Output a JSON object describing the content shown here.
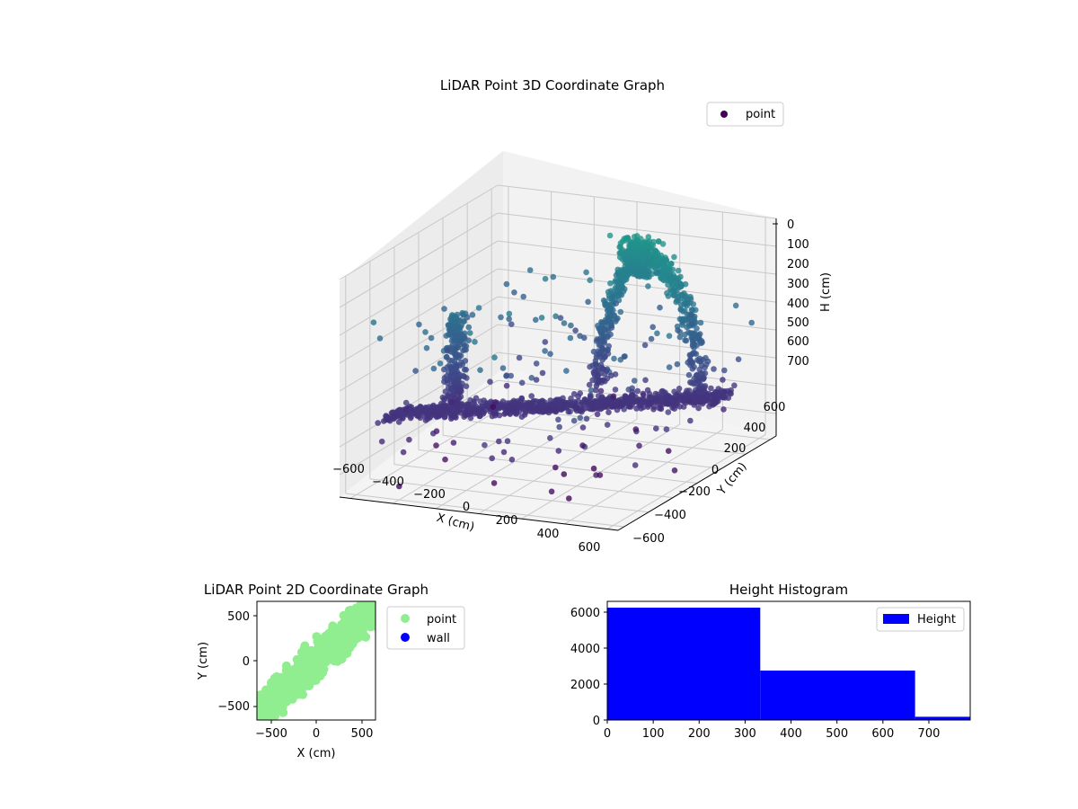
{
  "chart_data": [
    {
      "type": "scatter",
      "projection": "3d",
      "title": "LiDAR Point 3D Coordinate Graph",
      "xlabel": "X (cm)",
      "ylabel": "Y (cm)",
      "zlabel": "H (cm)",
      "x_ticks": [
        "−600",
        "−400",
        "−200",
        "0",
        "200",
        "400",
        "600"
      ],
      "y_ticks": [
        "−600",
        "−400",
        "−200",
        "0",
        "200",
        "400",
        "600"
      ],
      "z_ticks": [
        "0",
        "100",
        "200",
        "300",
        "400",
        "500",
        "600",
        "700"
      ],
      "xlim": [
        -650,
        650
      ],
      "ylim": [
        -650,
        650
      ],
      "zlim": [
        0,
        780
      ],
      "z_inverted": true,
      "legend": {
        "entries": [
          "point"
        ],
        "position": "top-right"
      },
      "series": [
        {
          "name": "point",
          "color": "#440154",
          "colormap": "viridis",
          "description_points": [
            {
              "x": 0,
              "y": 0,
              "h": 560
            },
            {
              "x": -400,
              "y": -100,
              "h": 580
            },
            {
              "x": 300,
              "y": 100,
              "h": 560
            }
          ]
        }
      ],
      "grid": true
    },
    {
      "type": "scatter",
      "title": "LiDAR Point 2D Coordinate Graph",
      "xlabel": "X (cm)",
      "ylabel": "Y (cm)",
      "xlim": [
        -650,
        650
      ],
      "ylim": [
        -650,
        650
      ],
      "x_ticks": [
        "−500",
        "0",
        "500"
      ],
      "y_ticks": [
        "−500",
        "0",
        "500"
      ],
      "legend": {
        "entries": [
          "point",
          "wall"
        ],
        "position": "outside-right"
      },
      "series": [
        {
          "name": "point",
          "color": "#90ee90"
        },
        {
          "name": "wall",
          "color": "#0000ff"
        }
      ]
    },
    {
      "type": "bar",
      "subtype": "histogram",
      "title": "Height Histogram",
      "xlabel": "",
      "ylabel": "",
      "xlim": [
        0,
        790
      ],
      "ylim": [
        0,
        6600
      ],
      "x_ticks": [
        "0",
        "100",
        "200",
        "300",
        "400",
        "500",
        "600",
        "700"
      ],
      "y_ticks": [
        "0",
        "2000",
        "4000",
        "6000"
      ],
      "legend": {
        "entries": [
          "Height"
        ],
        "position": "top-right"
      },
      "series": [
        {
          "name": "Height",
          "color": "#0000ff",
          "bins": [
            {
              "start": 0,
              "end": 333,
              "count": 6250
            },
            {
              "start": 333,
              "end": 670,
              "count": 2750
            },
            {
              "start": 670,
              "end": 790,
              "count": 180
            }
          ]
        }
      ]
    }
  ]
}
